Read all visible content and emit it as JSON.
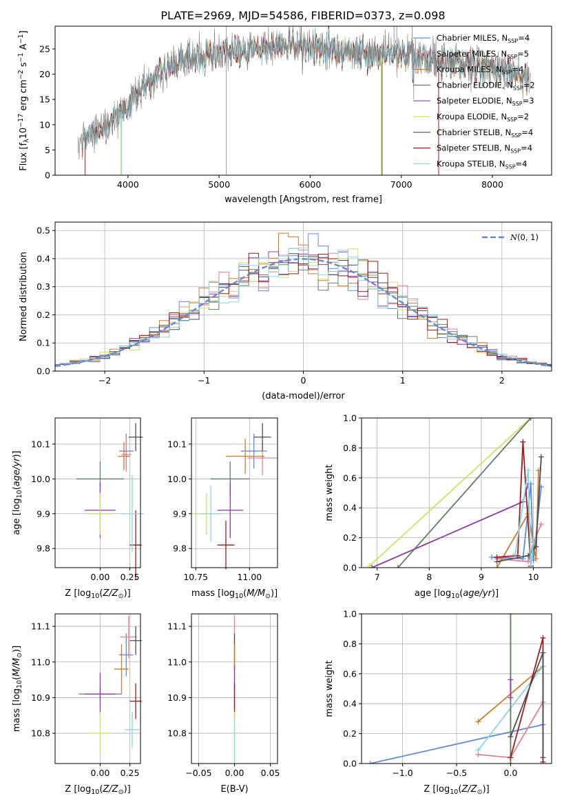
{
  "figure_title": "PLATE=2969, MJD=54586, FIBERID=0373, z=0.098",
  "colors": {
    "chabrier_miles": "#5c8ae6",
    "salpeter_miles": "#e6808f",
    "kroupa_miles": "#d9781f",
    "chabrier_elodie": "#5e8060",
    "salpeter_elodie": "#9433b0",
    "kroupa_elodie": "#d2e05c",
    "chabrier_stelib": "#4d4d4d",
    "salpeter_stelib": "#a3191c",
    "kroupa_stelib": "#80d9e6",
    "normal": "#5c8ad6"
  },
  "chart_data": [
    {
      "id": "spectrum",
      "type": "line",
      "xlabel": "wavelength [Angstrom, rest frame]",
      "ylabel": "Flux [f_λ10^-17 erg cm^-2 s^-1 A^-1]",
      "xlim": [
        3200,
        8650
      ],
      "ylim": [
        0,
        29.5
      ],
      "xticks": [
        4000,
        5000,
        6000,
        7000,
        8000
      ],
      "yticks": [
        0,
        5,
        10,
        15,
        20,
        25
      ],
      "legend_position": "upper right",
      "legend": [
        {
          "label": "Chabrier MILES, N",
          "sub": "SSP",
          "suffix": "=4",
          "color": "chabrier_miles"
        },
        {
          "label": "Salpeter MILES, N",
          "sub": "SSP",
          "suffix": "=5",
          "color": "salpeter_miles"
        },
        {
          "label": "Kroupa MILES, N",
          "sub": "SSP",
          "suffix": "=4",
          "color": "kroupa_miles"
        },
        {
          "label": "Chabrier ELODIE, N",
          "sub": "SSP",
          "suffix": "=2",
          "color": "chabrier_elodie"
        },
        {
          "label": "Salpeter ELODIE, N",
          "sub": "SSP",
          "suffix": "=3",
          "color": "salpeter_elodie"
        },
        {
          "label": "Kroupa ELODIE, N",
          "sub": "SSP",
          "suffix": "=2",
          "color": "kroupa_elodie"
        },
        {
          "label": "Chabrier STELIB, N",
          "sub": "SSP",
          "suffix": "=4",
          "color": "chabrier_stelib"
        },
        {
          "label": "Salpeter STELIB, N",
          "sub": "SSP",
          "suffix": "=4",
          "color": "salpeter_stelib"
        },
        {
          "label": "Kroupa STELIB, N",
          "sub": "SSP",
          "suffix": "=4",
          "color": "kroupa_stelib"
        }
      ],
      "continuum": {
        "x": [
          3500,
          3700,
          3900,
          4000,
          4200,
          4400,
          4600,
          4800,
          5000,
          5200,
          5400,
          5600,
          5800,
          6000,
          6200,
          6400,
          6600,
          6800,
          7000,
          7200,
          7400,
          7600,
          7800,
          8000,
          8200,
          8400
        ],
        "y": [
          7,
          9.5,
          12,
          14,
          18,
          21,
          22.5,
          23.5,
          24.5,
          24.5,
          25,
          25.5,
          25.5,
          25.5,
          25,
          24.5,
          24,
          24,
          24,
          23.5,
          23,
          22.5,
          21.5,
          21,
          20.5,
          19
        ]
      }
    },
    {
      "id": "residuals",
      "type": "histogram",
      "xlabel": "(data-model)/error",
      "ylabel": "Normed distribution",
      "xlim": [
        -2.5,
        2.5
      ],
      "ylim": [
        0,
        0.53
      ],
      "xticks": [
        -2,
        -1,
        0,
        1,
        2
      ],
      "yticks": [
        0.0,
        0.1,
        0.2,
        0.3,
        0.4,
        0.5
      ],
      "legend": [
        {
          "label": "N(0,1)",
          "color": "normal",
          "style": "dashed"
        }
      ],
      "legend_position": "upper right",
      "bin_width": 0.1,
      "envelope": {
        "x": [
          -2.5,
          -2.0,
          -1.5,
          -1.0,
          -0.5,
          0.0,
          0.5,
          1.0,
          1.5,
          2.0,
          2.5
        ],
        "y": [
          0.02,
          0.05,
          0.13,
          0.25,
          0.36,
          0.4,
          0.35,
          0.24,
          0.13,
          0.05,
          0.02
        ]
      }
    },
    {
      "id": "z_vs_age",
      "type": "errorbar",
      "xlabel": "Z [log10(Z/Z⊙)]",
      "ylabel": "age  [log10(age/yr)]",
      "xlim": [
        -0.38,
        0.34
      ],
      "ylim": [
        9.745,
        10.175
      ],
      "xticks": [
        0.0,
        0.25
      ],
      "xticklabels": [
        "0.00",
        "0.25"
      ],
      "yticks": [
        9.8,
        9.9,
        10.0,
        10.1
      ],
      "points": [
        {
          "m": "chabrier_miles",
          "x": 0.22,
          "xe": 0.06,
          "y": 10.08,
          "ye": 0.05
        },
        {
          "m": "salpeter_miles",
          "x": 0.22,
          "xe": 0.04,
          "y": 10.07,
          "ye": 0.05
        },
        {
          "m": "kroupa_miles",
          "x": 0.2,
          "xe": 0.05,
          "y": 10.065,
          "ye": 0.04
        },
        {
          "m": "chabrier_elodie",
          "x": 0.0,
          "xe": 0.2,
          "y": 10.0,
          "ye": 0.05
        },
        {
          "m": "salpeter_elodie",
          "x": 0.0,
          "xe": 0.13,
          "y": 9.91,
          "ye": 0.08
        },
        {
          "m": "kroupa_elodie",
          "x": 0.0,
          "xe": 0.1,
          "y": 9.9,
          "ye": 0.06
        },
        {
          "m": "chabrier_stelib",
          "x": 0.3,
          "xe": 0.06,
          "y": 10.12,
          "ye": 0.04
        },
        {
          "m": "salpeter_stelib",
          "x": 0.3,
          "xe": 0.05,
          "y": 9.81,
          "ye": 0.1
        },
        {
          "m": "kroupa_stelib",
          "x": 0.27,
          "xe": 0.1,
          "y": 9.9,
          "ye": 0.11
        }
      ]
    },
    {
      "id": "mass_vs_age",
      "type": "errorbar",
      "xlabel": "mass [log10(M/M⊙)]",
      "ylabel": "",
      "xlim": [
        10.73,
        11.13
      ],
      "ylim": [
        9.745,
        10.175
      ],
      "xticks": [
        10.75,
        11.0
      ],
      "xticklabels": [
        "10.75",
        "11.00"
      ],
      "yticks": [
        9.8,
        9.9,
        10.0,
        10.1
      ],
      "points": [
        {
          "m": "chabrier_miles",
          "x": 11.02,
          "xe": 0.06,
          "y": 10.08,
          "ye": 0.05
        },
        {
          "m": "salpeter_miles",
          "x": 11.06,
          "xe": 0.07,
          "y": 10.06,
          "ye": 0.05
        },
        {
          "m": "kroupa_miles",
          "x": 10.98,
          "xe": 0.09,
          "y": 10.065,
          "ye": 0.05
        },
        {
          "m": "chabrier_elodie",
          "x": 10.91,
          "xe": 0.09,
          "y": 10.0,
          "ye": 0.05
        },
        {
          "m": "salpeter_elodie",
          "x": 10.91,
          "xe": 0.06,
          "y": 9.91,
          "ye": 0.08
        },
        {
          "m": "kroupa_elodie",
          "x": 10.8,
          "xe": 0.06,
          "y": 9.9,
          "ye": 0.06
        },
        {
          "m": "chabrier_stelib",
          "x": 11.06,
          "xe": 0.04,
          "y": 10.12,
          "ye": 0.04
        },
        {
          "m": "salpeter_stelib",
          "x": 10.89,
          "xe": 0.04,
          "y": 9.81,
          "ye": 0.07
        },
        {
          "m": "kroupa_stelib",
          "x": 10.82,
          "xe": 0.05,
          "y": 9.9,
          "ye": 0.08
        }
      ]
    },
    {
      "id": "age_weights",
      "type": "line",
      "xlabel": "age  [log10(age/yr)]",
      "ylabel": "mass weight",
      "xlim": [
        6.7,
        10.35
      ],
      "ylim": [
        0,
        1.0
      ],
      "xticks": [
        7,
        8,
        9,
        10
      ],
      "yticks": [
        0.0,
        0.2,
        0.4,
        0.6,
        0.8,
        1.0
      ],
      "yticklabels": [
        "0.0",
        "0.2",
        "0.4",
        "0.6",
        "0.8",
        "1.0"
      ],
      "series": [
        {
          "m": "kroupa_elodie",
          "x": [
            6.85,
            9.95
          ],
          "y": [
            0.01,
            1.0
          ]
        },
        {
          "m": "chabrier_elodie",
          "x": [
            7.4,
            9.95
          ],
          "y": [
            0.0,
            1.0
          ]
        },
        {
          "m": "salpeter_elodie",
          "x": [
            6.9,
            9.8,
            9.9
          ],
          "y": [
            0.0,
            0.44,
            0.56
          ]
        },
        {
          "m": "chabrier_miles",
          "x": [
            9.2,
            9.8,
            9.95,
            10.0,
            10.15
          ],
          "y": [
            0.07,
            0.06,
            0.56,
            0.05,
            0.54
          ]
        },
        {
          "m": "salpeter_miles",
          "x": [
            9.3,
            9.9,
            10.0,
            10.15
          ],
          "y": [
            0.06,
            0.04,
            0.17,
            0.29
          ]
        },
        {
          "m": "kroupa_miles",
          "x": [
            9.3,
            9.9,
            10.05,
            10.1
          ],
          "y": [
            0.0,
            0.36,
            0.06,
            0.65
          ]
        },
        {
          "m": "chabrier_stelib",
          "x": [
            9.3,
            9.9,
            10.05,
            10.15
          ],
          "y": [
            0.04,
            0.08,
            0.14,
            0.74
          ]
        },
        {
          "m": "salpeter_stelib",
          "x": [
            9.3,
            9.7,
            9.8,
            9.95
          ],
          "y": [
            0.07,
            0.08,
            0.84,
            0.01
          ]
        },
        {
          "m": "kroupa_stelib",
          "x": [
            9.65,
            9.9,
            9.95,
            10.0
          ],
          "y": [
            0.09,
            0.65,
            0.0,
            0.19
          ]
        }
      ]
    },
    {
      "id": "z_vs_mass",
      "type": "errorbar",
      "xlabel": "Z [log10(Z/Z⊙)]",
      "ylabel": "mass [log10(M/M⊙)]",
      "xlim": [
        -0.38,
        0.34
      ],
      "ylim": [
        10.715,
        11.135
      ],
      "xticks": [
        0.0,
        0.25
      ],
      "xticklabels": [
        "0.00",
        "0.25"
      ],
      "yticks": [
        10.8,
        10.9,
        11.0,
        11.1
      ],
      "points": [
        {
          "m": "chabrier_miles",
          "x": 0.22,
          "xe": 0.06,
          "y": 11.02,
          "ye": 0.06
        },
        {
          "m": "salpeter_miles",
          "x": 0.24,
          "xe": 0.07,
          "y": 11.07,
          "ye": 0.06
        },
        {
          "m": "kroupa_miles",
          "x": 0.18,
          "xe": 0.06,
          "y": 10.98,
          "ye": 0.07
        },
        {
          "m": "chabrier_elodie",
          "x": 0.0,
          "xe": 0.18,
          "y": 10.91,
          "ye": 0.02
        },
        {
          "m": "salpeter_elodie",
          "x": 0.0,
          "xe": 0.13,
          "y": 10.91,
          "ye": 0.06
        },
        {
          "m": "kroupa_elodie",
          "x": 0.0,
          "xe": 0.1,
          "y": 10.8,
          "ye": 0.06
        },
        {
          "m": "chabrier_stelib",
          "x": 0.3,
          "xe": 0.05,
          "y": 11.06,
          "ye": 0.04
        },
        {
          "m": "salpeter_stelib",
          "x": 0.3,
          "xe": 0.05,
          "y": 10.89,
          "ye": 0.05
        },
        {
          "m": "kroupa_stelib",
          "x": 0.27,
          "xe": 0.06,
          "y": 10.81,
          "ye": 0.05
        }
      ]
    },
    {
      "id": "ebv_vs_mass",
      "type": "errorbar",
      "xlabel": "E(B-V)",
      "ylabel": "",
      "xlim": [
        -0.06,
        0.06
      ],
      "ylim": [
        10.715,
        11.135
      ],
      "xticks": [
        -0.05,
        0.0,
        0.05
      ],
      "xticklabels": [
        "-0.05",
        "0.00",
        "0.05"
      ],
      "yticks": [
        10.8,
        10.9,
        11.0,
        11.1
      ],
      "points": [
        {
          "m": "salpeter_miles",
          "x": 0.0,
          "xe": 0.0,
          "y": 11.06,
          "ye": 0.07
        },
        {
          "m": "chabrier_stelib",
          "x": 0.0,
          "xe": 0.0,
          "y": 11.03,
          "ye": 0.05
        },
        {
          "m": "kroupa_miles",
          "x": 0.0,
          "xe": 0.0,
          "y": 10.98,
          "ye": 0.07
        },
        {
          "m": "salpeter_elodie",
          "x": 0.0,
          "xe": 0.0,
          "y": 10.93,
          "ye": 0.06
        },
        {
          "m": "salpeter_stelib",
          "x": 0.0,
          "xe": 0.0,
          "y": 10.89,
          "ye": 0.05
        },
        {
          "m": "kroupa_elodie",
          "x": 0.0,
          "xe": 0.0,
          "y": 10.8,
          "ye": 0.06
        },
        {
          "m": "kroupa_stelib",
          "x": 0.0,
          "xe": 0.0,
          "y": 10.78,
          "ye": 0.06
        }
      ]
    },
    {
      "id": "z_weights",
      "type": "line",
      "xlabel": "Z [log10(Z/Z⊙)]",
      "ylabel": "mass weight",
      "xlim": [
        -1.38,
        0.38
      ],
      "ylim": [
        0,
        1.0
      ],
      "xticks": [
        -1.0,
        -0.5,
        0.0
      ],
      "xticklabels": [
        "−1.0",
        "−0.5",
        "0.0"
      ],
      "yticks": [
        0.0,
        0.2,
        0.4,
        0.6,
        0.8,
        1.0
      ],
      "yticklabels": [
        "0.0",
        "0.2",
        "0.4",
        "0.6",
        "0.8",
        "1.0"
      ],
      "series": [
        {
          "m": "chabrier_miles",
          "x": [
            -1.3,
            0.3
          ],
          "y": [
            0.0,
            0.26
          ]
        },
        {
          "m": "kroupa_miles",
          "x": [
            -0.3,
            0.3
          ],
          "y": [
            0.28,
            0.65
          ]
        },
        {
          "m": "kroupa_stelib",
          "x": [
            -0.3,
            0.3
          ],
          "y": [
            0.09,
            0.65
          ]
        },
        {
          "m": "salpeter_miles",
          "x": [
            -0.3,
            0.0,
            0.3
          ],
          "y": [
            0.06,
            0.04,
            0.41
          ]
        },
        {
          "m": "kroupa_elodie",
          "x": [
            0.0,
            0.0
          ],
          "y": [
            0.0,
            1.0
          ]
        },
        {
          "m": "chabrier_elodie",
          "x": [
            0.0,
            0.0
          ],
          "y": [
            0.0,
            1.0
          ]
        },
        {
          "m": "salpeter_elodie",
          "x": [
            0.0,
            0.0
          ],
          "y": [
            0.44,
            0.56
          ]
        },
        {
          "m": "salpeter_stelib",
          "x": [
            0.0,
            0.3,
            0.3
          ],
          "y": [
            0.04,
            0.84,
            0.01
          ]
        },
        {
          "m": "chabrier_stelib",
          "x": [
            0.0,
            0.3,
            0.3
          ],
          "y": [
            0.18,
            0.74,
            0.04
          ]
        }
      ]
    }
  ]
}
